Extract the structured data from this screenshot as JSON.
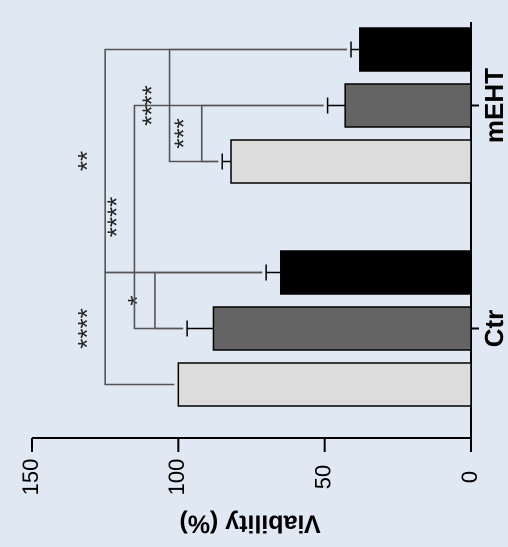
{
  "chart_data": {
    "type": "bar",
    "ylabel": "Viability (%)",
    "ylim": [
      0,
      150
    ],
    "yticks": [
      0,
      50,
      100,
      150
    ],
    "categories": [
      "Ctr",
      "mEHT"
    ],
    "series": [
      {
        "fill": "#dcdcdc",
        "values": [
          100,
          82
        ],
        "errors": [
          0,
          3
        ]
      },
      {
        "fill": "#646464",
        "values": [
          88,
          43
        ],
        "errors": [
          9,
          6
        ]
      },
      {
        "fill": "#000000",
        "values": [
          65,
          38
        ],
        "errors": [
          5,
          3
        ]
      }
    ],
    "significance": [
      {
        "label": "****",
        "from": [
          0,
          0
        ],
        "to": [
          0,
          2
        ]
      },
      {
        "label": "*",
        "from": [
          0,
          1
        ],
        "to": [
          0,
          2
        ]
      },
      {
        "label": "****",
        "from": [
          0,
          1
        ],
        "to": [
          1,
          1
        ]
      },
      {
        "label": "**",
        "from": [
          0,
          2
        ],
        "to": [
          1,
          2
        ]
      },
      {
        "label": "****",
        "from": [
          1,
          0
        ],
        "to": [
          1,
          2
        ]
      },
      {
        "label": "***",
        "from": [
          1,
          0
        ],
        "to": [
          1,
          1
        ]
      }
    ],
    "orientation": "rotated",
    "grid": false
  }
}
